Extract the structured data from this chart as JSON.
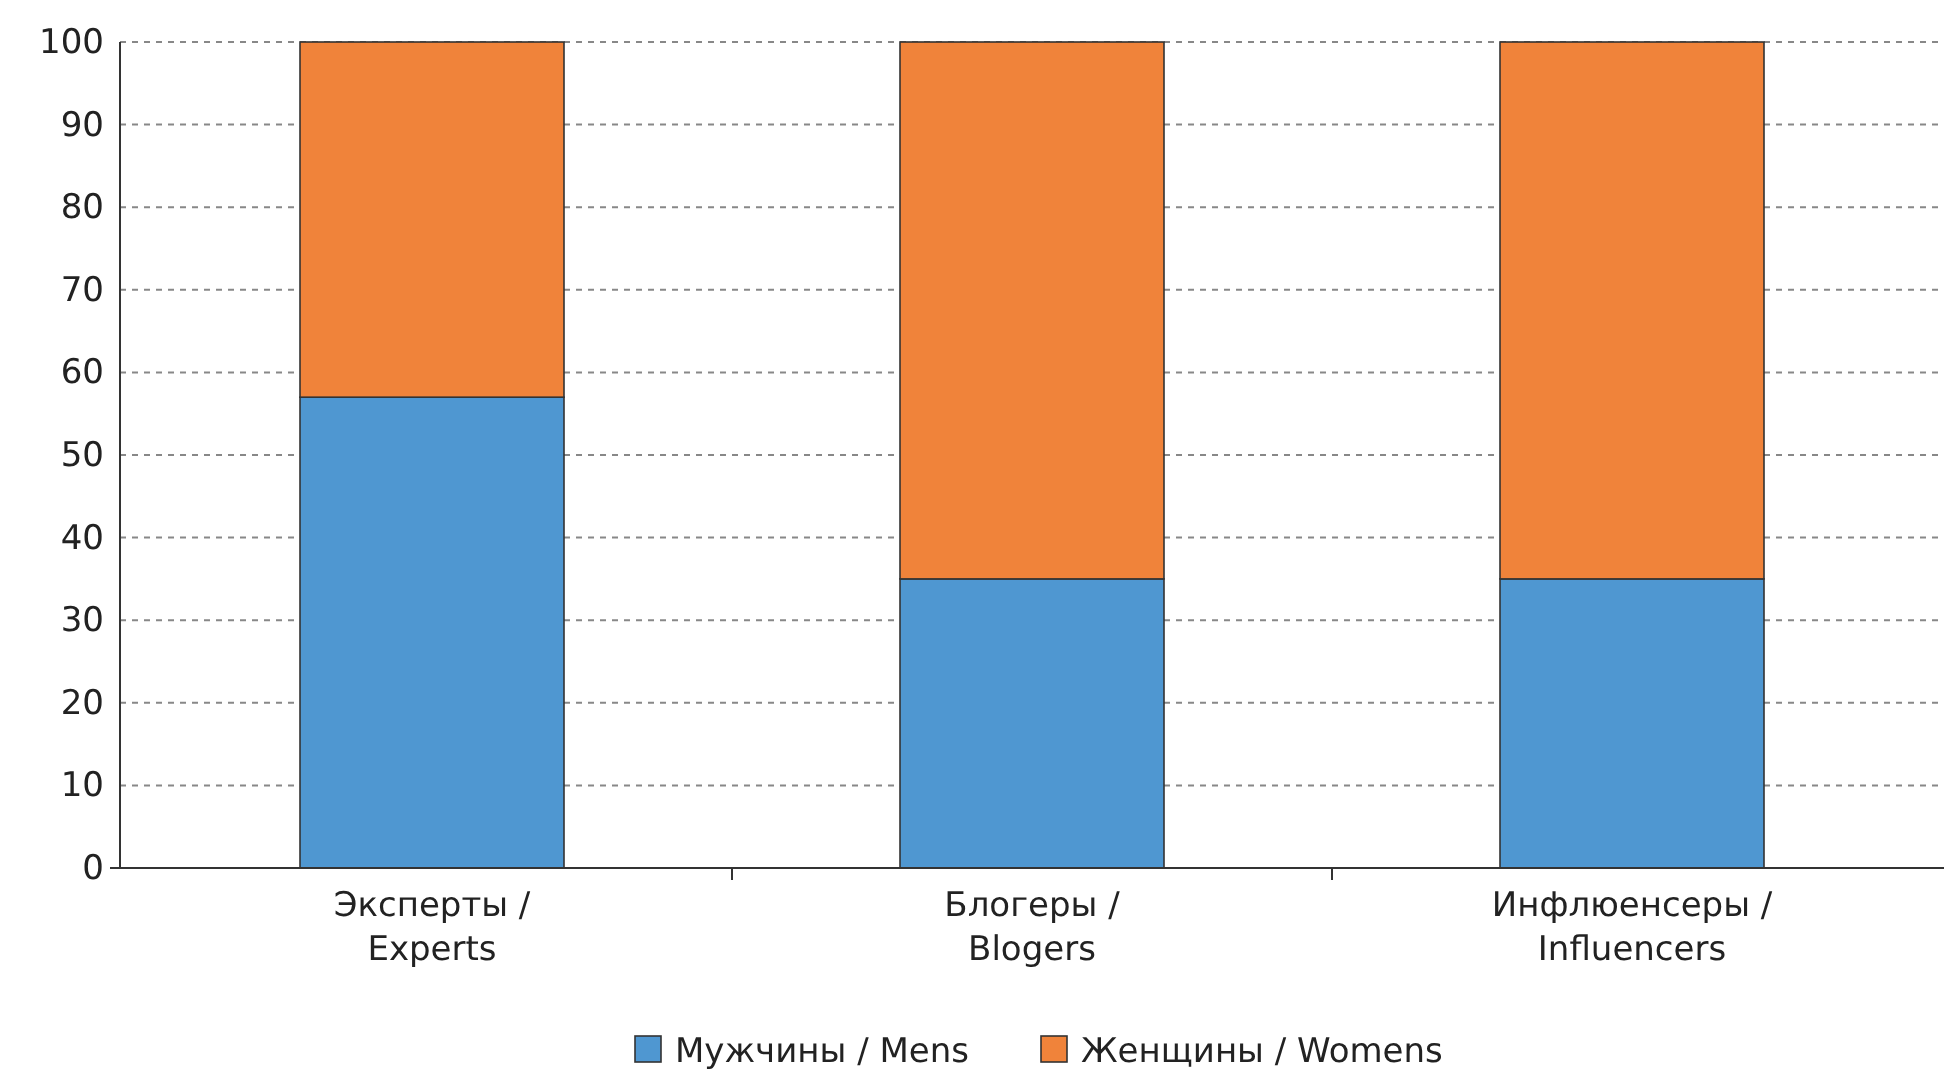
{
  "chart_data": {
    "type": "bar",
    "stacked": true,
    "categories": [
      "Эксперты / Experts",
      "Блогеры / Blogers",
      "Инфлюенсеры / Influencers"
    ],
    "series": [
      {
        "name": "Мужчины / Mens",
        "color": "#4f97d1",
        "values": [
          57,
          35,
          35
        ]
      },
      {
        "name": "Женщины / Womens",
        "color": "#f0833a",
        "values": [
          43,
          65,
          65
        ]
      }
    ],
    "ylim": [
      0,
      100
    ],
    "yticks": [
      0,
      10,
      20,
      30,
      40,
      50,
      60,
      70,
      80,
      90,
      100
    ],
    "grid": "y",
    "legend": "bottom"
  }
}
